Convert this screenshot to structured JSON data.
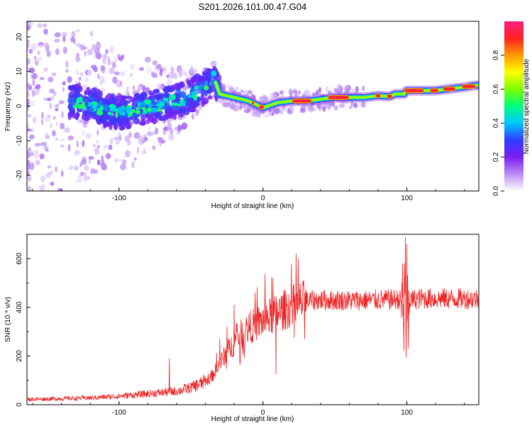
{
  "title": "S201.2026.101.00.47.G04",
  "chart_data": [
    {
      "type": "heatmap",
      "title": "S201.2026.101.00.47.G04",
      "xlabel": "Height of straight line (km)",
      "ylabel": "Frequency (Hz)",
      "xlim": [
        -164,
        150
      ],
      "ylim": [
        -24.5,
        24.5
      ],
      "xticks": [
        -100,
        0,
        100
      ],
      "yticks": [
        -20,
        -10,
        0,
        10,
        20
      ],
      "colorbar": {
        "label": "Normalized spectral amplitude",
        "range": [
          0,
          1
        ],
        "ticks": [
          0.0,
          0.2,
          0.4,
          0.6,
          0.8
        ],
        "colormap": [
          "#ffffff",
          "#b98cf2",
          "#7a1ef0",
          "#2f3cff",
          "#00c8ff",
          "#00ff80",
          "#7cff00",
          "#ffff00",
          "#ff9a00",
          "#ff2020",
          "#ff2080"
        ]
      },
      "ridge": {
        "x": [
          -135,
          -120,
          -110,
          -100,
          -90,
          -80,
          -70,
          -60,
          -50,
          -40,
          -34,
          -30,
          -20,
          -10,
          0,
          10,
          20,
          30,
          40,
          50,
          60,
          70,
          80,
          88,
          92,
          98,
          100,
          110,
          120,
          130,
          140,
          148
        ],
        "y": [
          1.5,
          0.5,
          -1,
          -2,
          -1.5,
          0,
          0.5,
          1.5,
          3,
          5.5,
          8,
          3.5,
          2.5,
          1.5,
          -0.5,
          1,
          1.5,
          1.5,
          2,
          2.5,
          2.5,
          2.5,
          3,
          2.8,
          3.5,
          3.5,
          4.5,
          4.5,
          4.5,
          5,
          5.5,
          6
        ]
      }
    },
    {
      "type": "line",
      "xlabel": "Height of straight line (km)",
      "ylabel": "SNR (10 * v/v)",
      "xlim": [
        -164,
        150
      ],
      "ylim": [
        0,
        700
      ],
      "xticks": [
        -100,
        0,
        100
      ],
      "yticks": [
        0,
        200,
        400,
        600
      ],
      "series": [
        {
          "name": "SNR",
          "color": "#ee2222",
          "trend_x": [
            -164,
            -140,
            -120,
            -100,
            -80,
            -60,
            -50,
            -40,
            -35,
            -30,
            -25,
            -20,
            -15,
            -10,
            -5,
            0,
            10,
            20,
            30,
            40,
            60,
            80,
            90,
            95,
            98,
            100,
            105,
            110,
            130,
            150
          ],
          "trend_y": [
            22,
            25,
            28,
            35,
            45,
            55,
            70,
            95,
            120,
            170,
            215,
            255,
            290,
            315,
            330,
            345,
            375,
            405,
            425,
            430,
            428,
            430,
            432,
            432,
            420,
            425,
            432,
            436,
            436,
            435
          ],
          "spikes_x": [
            -65,
            -30,
            -25,
            -20,
            -10,
            7,
            9,
            97,
            98,
            99,
            99.5,
            100,
            101
          ],
          "spikes_y": [
            190,
            270,
            320,
            410,
            300,
            520,
            125,
            580,
            220,
            690,
            195,
            660,
            230
          ]
        }
      ]
    }
  ]
}
